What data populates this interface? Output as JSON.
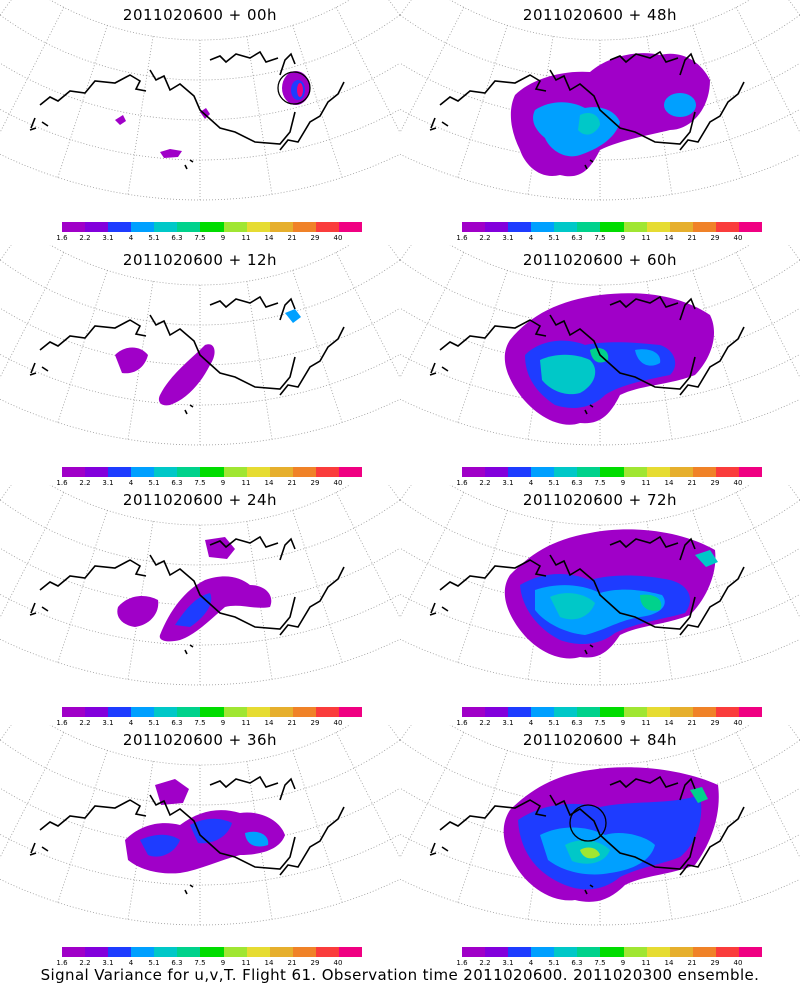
{
  "colorbar": {
    "colors": [
      "#a000c8",
      "#8200dc",
      "#1e3cff",
      "#00a0ff",
      "#00c8c8",
      "#00d28c",
      "#00dc00",
      "#a0e632",
      "#e6dc32",
      "#e6af2d",
      "#f08228",
      "#fa3c3c",
      "#f00082"
    ],
    "labels": [
      "1.6",
      "2.2",
      "3.1",
      "4",
      "5.1",
      "6.3",
      "7.5",
      "9",
      "11",
      "14",
      "21",
      "29",
      "40"
    ]
  },
  "panels": [
    {
      "id": "p00",
      "title": "2011020600 + 00h"
    },
    {
      "id": "p48",
      "title": "2011020600 + 48h"
    },
    {
      "id": "p12",
      "title": "2011020600 + 12h"
    },
    {
      "id": "p60",
      "title": "2011020600 + 60h"
    },
    {
      "id": "p24",
      "title": "2011020600 + 24h"
    },
    {
      "id": "p72",
      "title": "2011020600 + 72h"
    },
    {
      "id": "p36",
      "title": "2011020600 + 36h"
    },
    {
      "id": "p84",
      "title": "2011020600 + 84h"
    }
  ],
  "footer": "Signal Variance for u,v,T. Flight 61. Observation time 2011020600. 2011020300 ensemble."
}
